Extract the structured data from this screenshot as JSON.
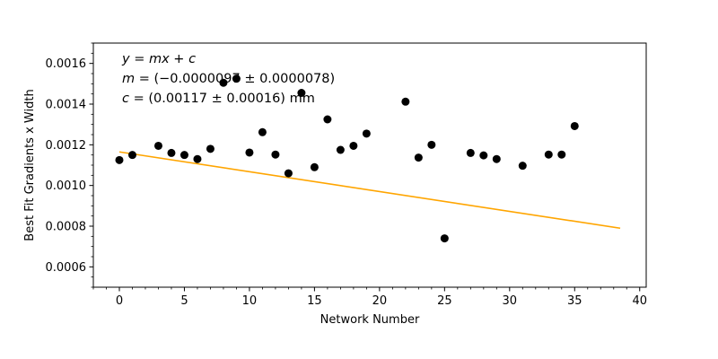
{
  "chart_data": {
    "type": "scatter",
    "xlabel": "Network Number",
    "ylabel": "Best Fit Gradients x Width",
    "xlim": [
      -2,
      40.5
    ],
    "ylim": [
      0.0005,
      0.0017
    ],
    "x_ticks": [
      0,
      5,
      10,
      15,
      20,
      25,
      30,
      35,
      40
    ],
    "x_tick_labels": [
      "0",
      "5",
      "10",
      "15",
      "20",
      "25",
      "30",
      "35",
      "40"
    ],
    "x_minor_step": 1,
    "y_ticks": [
      0.0006,
      0.0008,
      0.001,
      0.0012,
      0.0014,
      0.0016
    ],
    "y_tick_labels": [
      "0.0006",
      "0.0008",
      "0.0010",
      "0.0012",
      "0.0014",
      "0.0016"
    ],
    "y_minor_step": 5e-05,
    "grid": false,
    "colors": {
      "points": "#000000",
      "fit_line": "#ffa500"
    },
    "points": {
      "x": [
        0,
        1,
        3,
        4,
        5,
        6,
        7,
        8,
        9,
        10,
        11,
        12,
        13,
        14,
        15,
        16,
        17,
        18,
        19,
        22,
        23,
        24,
        25,
        27,
        28,
        29,
        31,
        33,
        34,
        35
      ],
      "y": [
        0.001125,
        0.00115,
        0.001195,
        0.00116,
        0.00115,
        0.00113,
        0.00118,
        0.001505,
        0.001525,
        0.001162,
        0.001262,
        0.001152,
        0.00106,
        0.001455,
        0.00109,
        0.001325,
        0.001175,
        0.001195,
        0.001255,
        0.001412,
        0.001137,
        0.0012,
        0.00074,
        0.00116,
        0.001148,
        0.00113,
        0.001097,
        0.001152,
        0.001152,
        0.001292
      ]
    },
    "fit_line": {
      "x": [
        0,
        38.5
      ],
      "y": [
        0.001165,
        0.00079
      ]
    },
    "annotations": [
      "y = mx + c",
      "m = (−0.0000097 ± 0.0000078)",
      "c = (0.00117 ± 0.00016) mm"
    ]
  }
}
